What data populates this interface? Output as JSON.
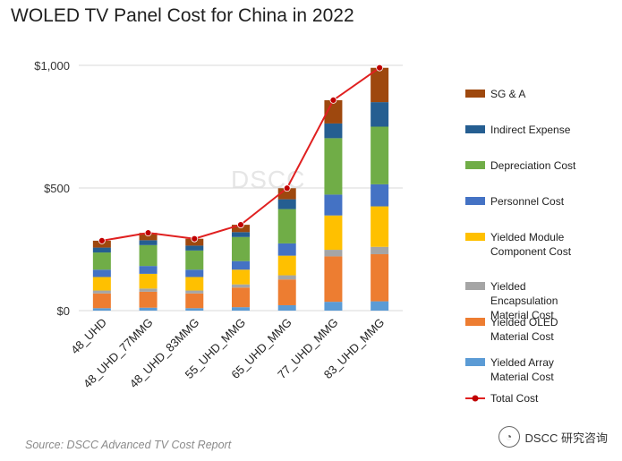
{
  "title": "WOLED TV Panel Cost for China in 2022",
  "source": "Source: DSCC Advanced TV Cost Report",
  "watermark": "DSCC",
  "brand": {
    "icon": "wechat-icon",
    "text": "DSCC 研究咨询"
  },
  "colors": {
    "array": "#5b9bd5",
    "oled": "#ed7d31",
    "encap": "#a5a5a5",
    "module": "#ffc000",
    "personnel": "#4472c4",
    "depreciation": "#70ad47",
    "indirect": "#255e91",
    "sga": "#9e480e",
    "total": "#e02020"
  },
  "chart_data": {
    "type": "bar",
    "stacked": true,
    "title": "WOLED TV Panel Cost for China in 2022",
    "categories": [
      "48_UHD",
      "48_UHD_77MMG",
      "48_UHD_83MMG",
      "55_UHD_MMG",
      "65_UHD_MMG",
      "77_UHD_MMG",
      "83_UHD_MMG"
    ],
    "ylim": [
      0,
      1000
    ],
    "yticks": [
      0,
      500,
      1000
    ],
    "ytick_labels": [
      "$0",
      "$500",
      "$1,000"
    ],
    "grid": true,
    "legend_position": "right",
    "series": [
      {
        "key": "array",
        "name": "Yielded Array Material Cost",
        "values": [
          10,
          12,
          10,
          14,
          22,
          36,
          38
        ]
      },
      {
        "key": "oled",
        "name": "Yielded OLED Material Cost",
        "values": [
          60,
          65,
          60,
          80,
          105,
          185,
          192
        ]
      },
      {
        "key": "encap",
        "name": "Yielded Encapsulation Material Cost",
        "values": [
          12,
          13,
          12,
          13,
          17,
          27,
          30
        ]
      },
      {
        "key": "module",
        "name": "Yielded Module Component Cost",
        "values": [
          55,
          60,
          55,
          60,
          80,
          140,
          165
        ]
      },
      {
        "key": "personnel",
        "name": "Personnel Cost",
        "values": [
          30,
          32,
          30,
          35,
          50,
          85,
          90
        ]
      },
      {
        "key": "depreciation",
        "name": "Depreciation Cost",
        "values": [
          70,
          85,
          78,
          98,
          140,
          230,
          235
        ]
      },
      {
        "key": "indirect",
        "name": "Indirect Expense",
        "values": [
          20,
          20,
          20,
          20,
          40,
          60,
          100
        ]
      },
      {
        "key": "sga",
        "name": "SG & A",
        "values": [
          28,
          30,
          28,
          30,
          45,
          95,
          140
        ]
      }
    ],
    "total": {
      "name": "Total Cost",
      "values": [
        285,
        317,
        293,
        350,
        499,
        858,
        990
      ]
    },
    "legend_order": [
      "sga",
      "indirect",
      "depreciation",
      "personnel",
      "module",
      "encap",
      "oled",
      "array",
      "total"
    ]
  }
}
